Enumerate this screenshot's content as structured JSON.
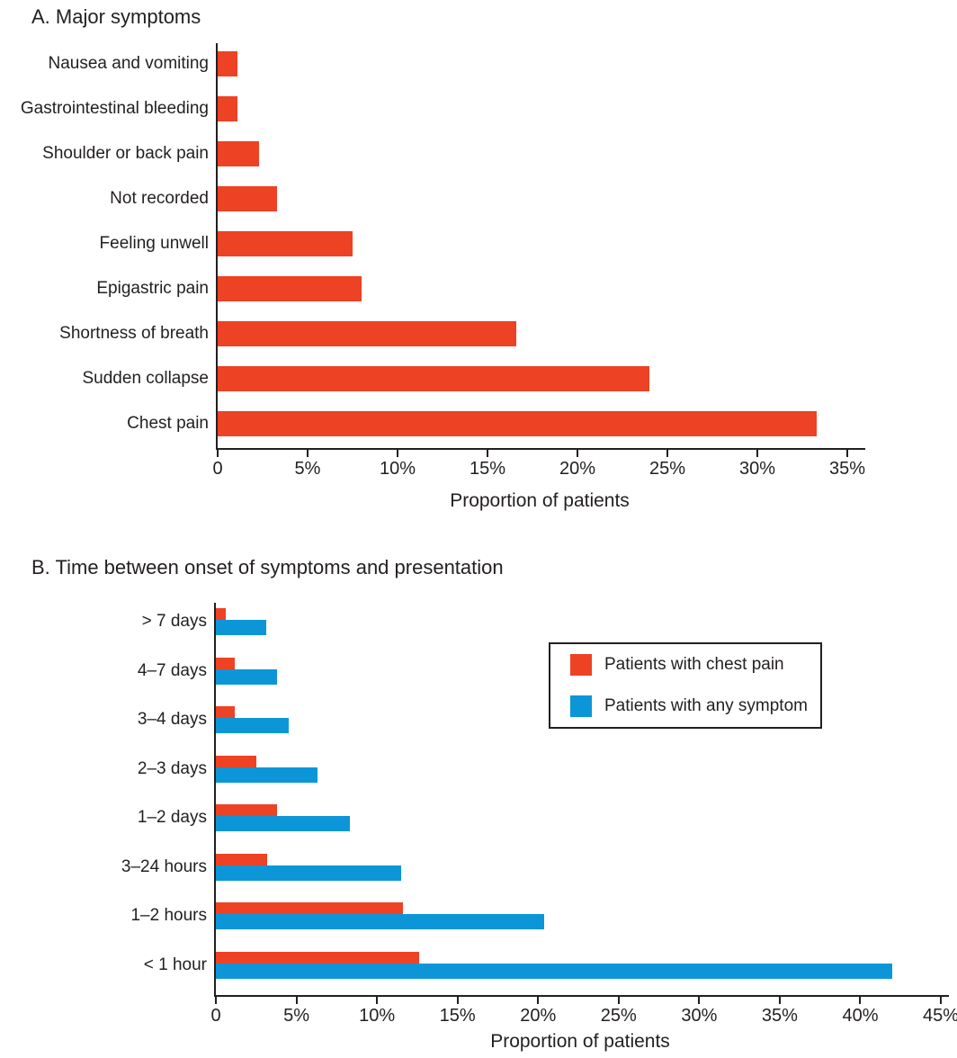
{
  "colors": {
    "chest_pain_red": "#ED4224",
    "any_symptom_blue": "#0C96D8",
    "text": "#231F20",
    "axis": "#231F20",
    "background": "#ffffff"
  },
  "chart_data": [
    {
      "id": "A",
      "type": "bar",
      "orientation": "horizontal",
      "title": "A. Major symptoms",
      "categories": [
        "Nausea and vomiting",
        "Gastrointestinal bleeding",
        "Shoulder or back pain",
        "Not recorded",
        "Feeling unwell",
        "Epigastric pain",
        "Shortness of breath",
        "Sudden collapse",
        "Chest pain"
      ],
      "values": [
        1.1,
        1.1,
        2.3,
        3.3,
        7.5,
        8.0,
        16.6,
        24.0,
        33.3
      ],
      "bar_color": "#ED4224",
      "xlabel": "Proportion of patients",
      "xlim": [
        0,
        36
      ],
      "xticks": [
        0,
        5,
        10,
        15,
        20,
        25,
        30,
        35
      ],
      "xtick_labels": [
        "0",
        "5%",
        "10%",
        "15%",
        "20%",
        "25%",
        "30%",
        "35%"
      ],
      "grid": false,
      "legend": null
    },
    {
      "id": "B",
      "type": "bar",
      "orientation": "horizontal",
      "title": "B. Time between onset of symptoms and presentation",
      "categories": [
        "> 7 days",
        "4–7 days",
        "3–4 days",
        "2–3 days",
        "1–2 days",
        "3–24 hours",
        "1–2 hours",
        "< 1 hour"
      ],
      "series": [
        {
          "name": "Patients with chest pain",
          "color": "#ED4224",
          "values": [
            0.6,
            1.2,
            1.2,
            2.5,
            3.8,
            3.2,
            11.6,
            12.6
          ]
        },
        {
          "name": "Patients with any symptom",
          "color": "#0C96D8",
          "values": [
            3.1,
            3.8,
            4.5,
            6.3,
            8.3,
            11.5,
            20.4,
            42.0
          ]
        }
      ],
      "xlabel": "Proportion of patients",
      "xlim": [
        0,
        45.5
      ],
      "xticks": [
        0,
        5,
        10,
        15,
        20,
        25,
        30,
        35,
        40,
        45
      ],
      "xtick_labels": [
        "0",
        "5%",
        "10%",
        "15%",
        "20%",
        "25%",
        "30%",
        "35%",
        "40%",
        "45%"
      ],
      "grid": false,
      "legend": {
        "position": "upper-right",
        "entries": [
          "Patients with chest pain",
          "Patients with any symptom"
        ]
      }
    }
  ]
}
